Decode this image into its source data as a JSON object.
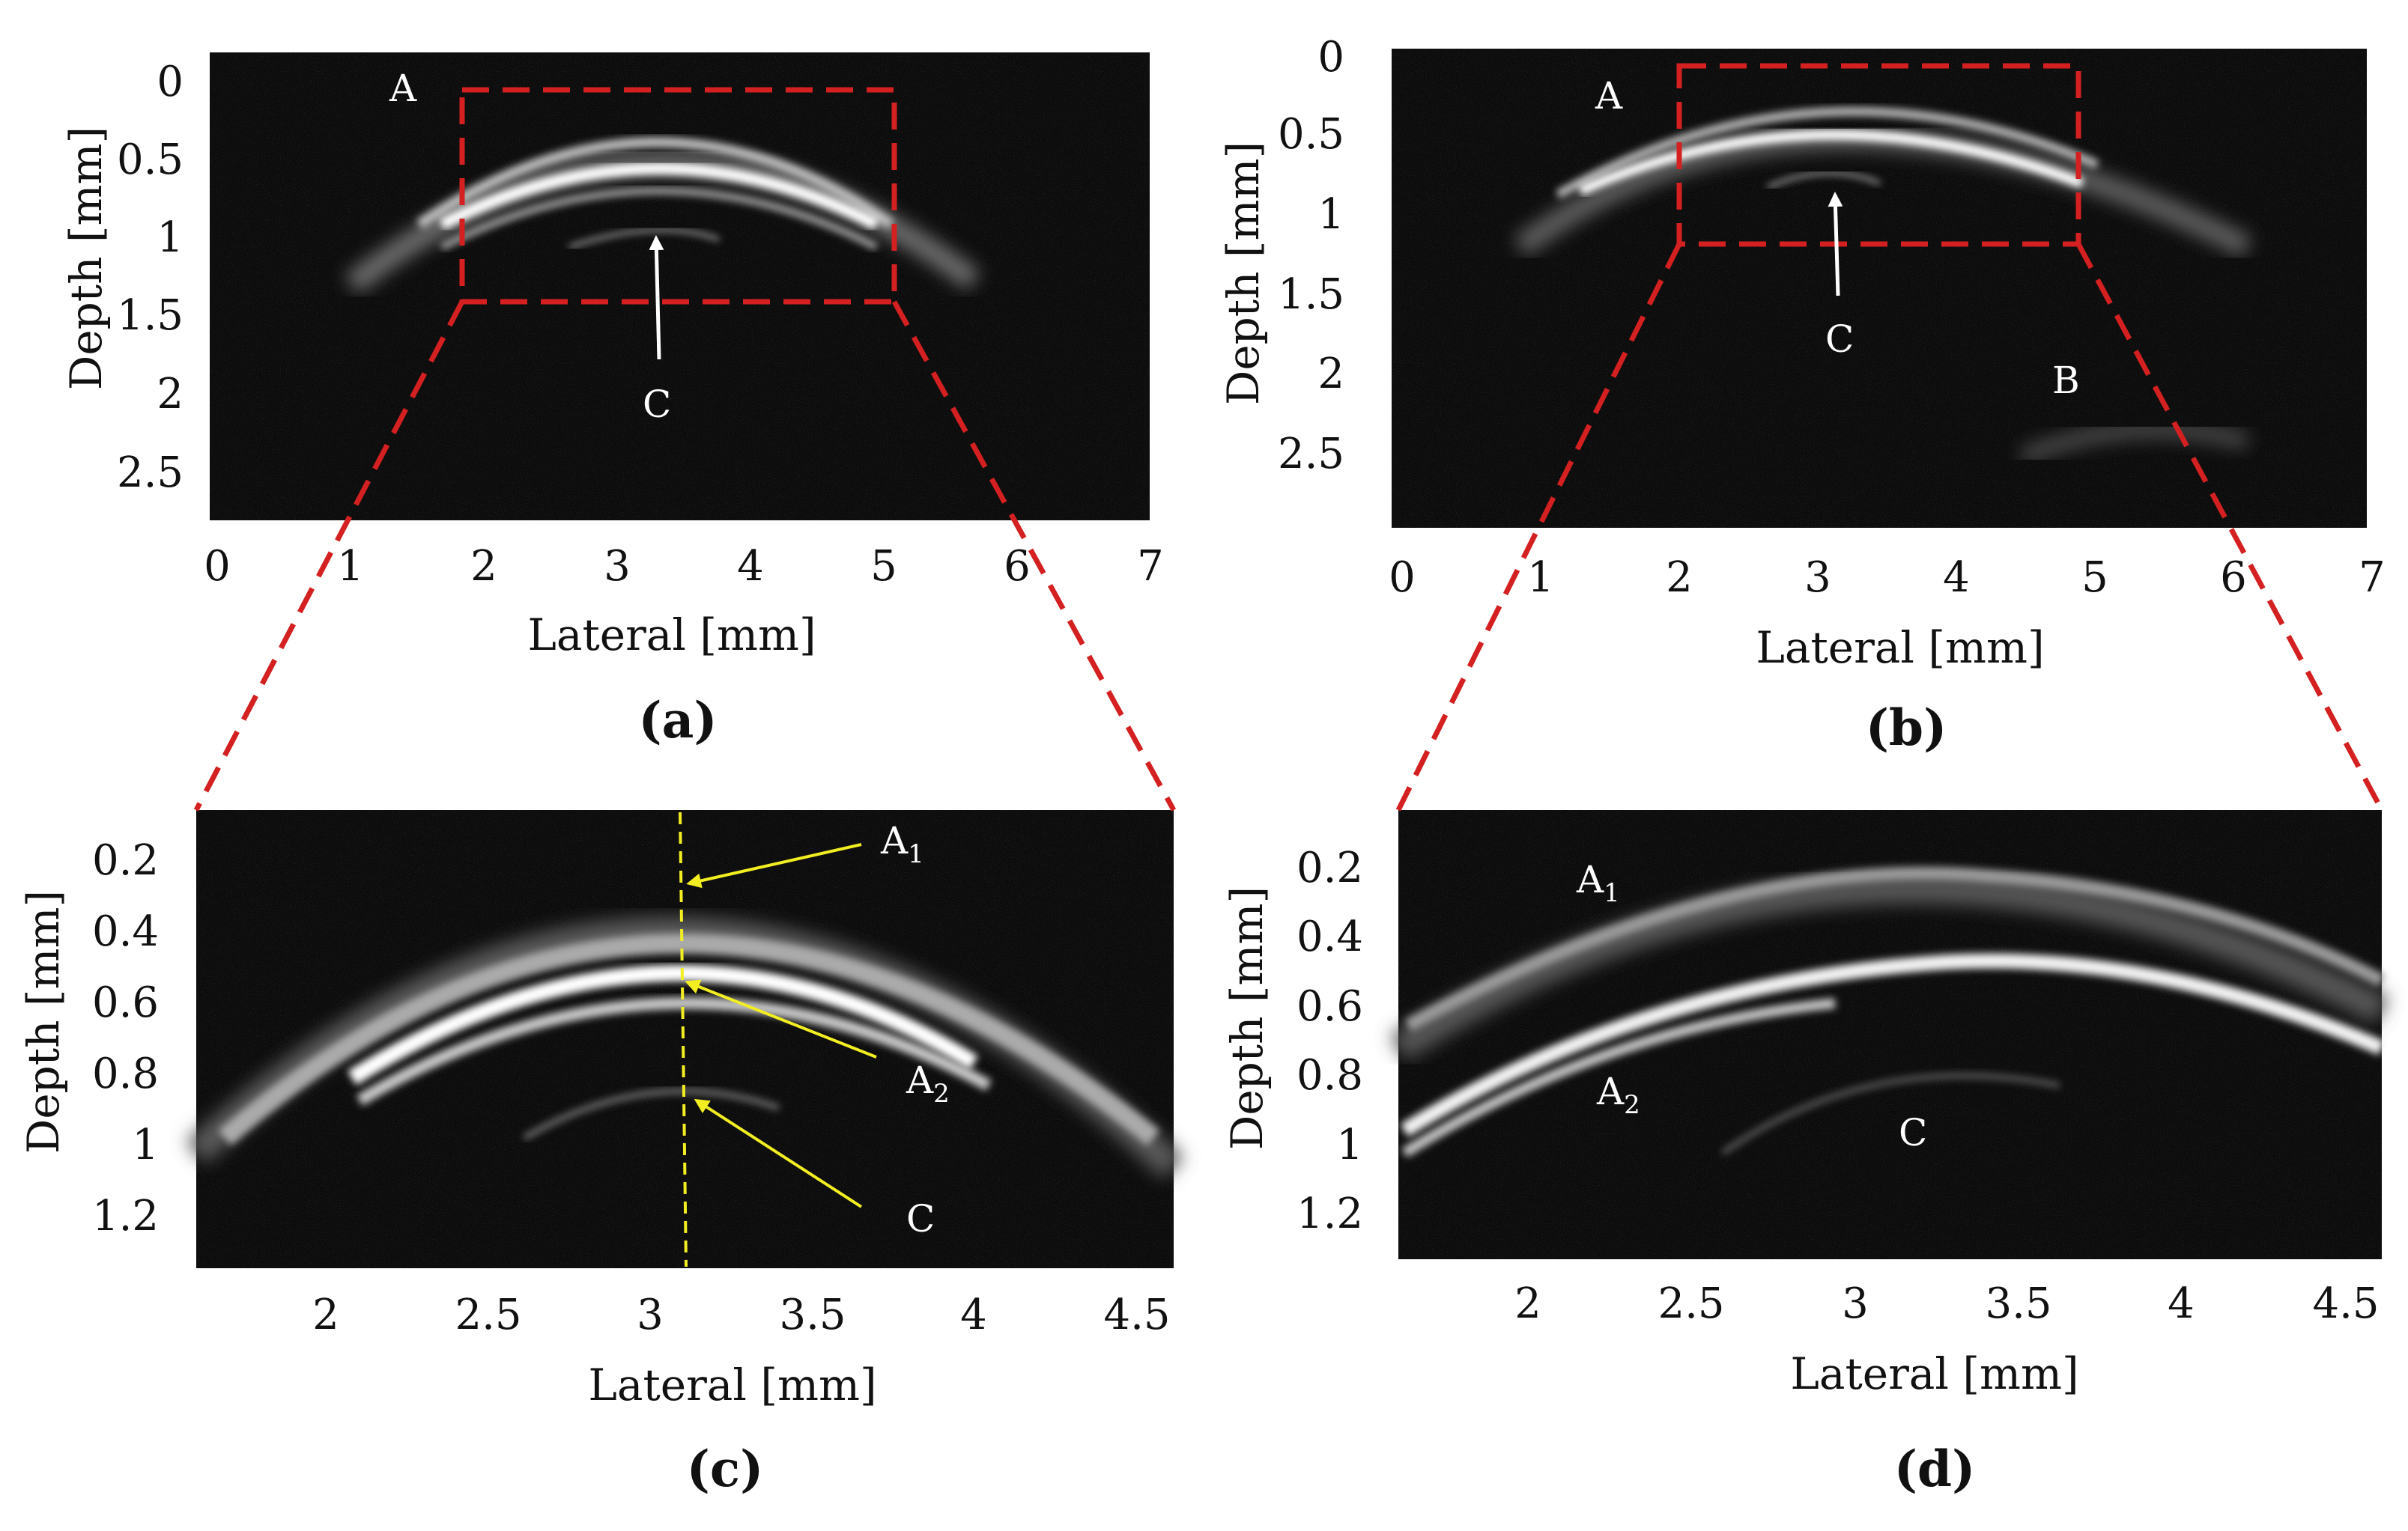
{
  "figure": {
    "panels": [
      {
        "id": "a",
        "caption": "(a)",
        "xlabel": "Lateral [mm]",
        "ylabel": "Depth [mm]",
        "x_ticks": [
          "0",
          "1",
          "2",
          "3",
          "4",
          "5",
          "6",
          "7"
        ],
        "y_ticks": [
          "0",
          "0.5",
          "1",
          "1.5",
          "2",
          "2.5"
        ],
        "labels": {
          "A": "A",
          "C": "C"
        }
      },
      {
        "id": "b",
        "caption": "(b)",
        "xlabel": "Lateral [mm]",
        "ylabel": "Depth [mm]",
        "x_ticks": [
          "0",
          "1",
          "2",
          "3",
          "4",
          "5",
          "6",
          "7"
        ],
        "y_ticks": [
          "0",
          "0.5",
          "1",
          "1.5",
          "2",
          "2.5"
        ],
        "labels": {
          "A": "A",
          "B": "B",
          "C": "C"
        }
      },
      {
        "id": "c",
        "caption": "(c)",
        "xlabel": "Lateral [mm]",
        "ylabel": "Depth [mm]",
        "x_ticks": [
          "2",
          "2.5",
          "3",
          "3.5",
          "4",
          "4.5"
        ],
        "y_ticks": [
          "0.2",
          "0.4",
          "0.6",
          "0.8",
          "1",
          "1.2"
        ],
        "labels": {
          "A1": "A",
          "A1_sub": "1",
          "A2": "A",
          "A2_sub": "2",
          "C": "C"
        }
      },
      {
        "id": "d",
        "caption": "(d)",
        "xlabel": "Lateral [mm]",
        "ylabel": "Depth [mm]",
        "x_ticks": [
          "2",
          "2.5",
          "3",
          "3.5",
          "4",
          "4.5"
        ],
        "y_ticks": [
          "0.2",
          "0.4",
          "0.6",
          "0.8",
          "1",
          "1.2"
        ],
        "labels": {
          "A1": "A",
          "A1_sub": "1",
          "A2": "A",
          "A2_sub": "2",
          "C": "C"
        }
      }
    ],
    "colors": {
      "zoom_box": "#d42020",
      "yellow_annotation": "#f2ee22",
      "image_background": "#0b0b0b",
      "label_white": "#ffffff"
    }
  }
}
